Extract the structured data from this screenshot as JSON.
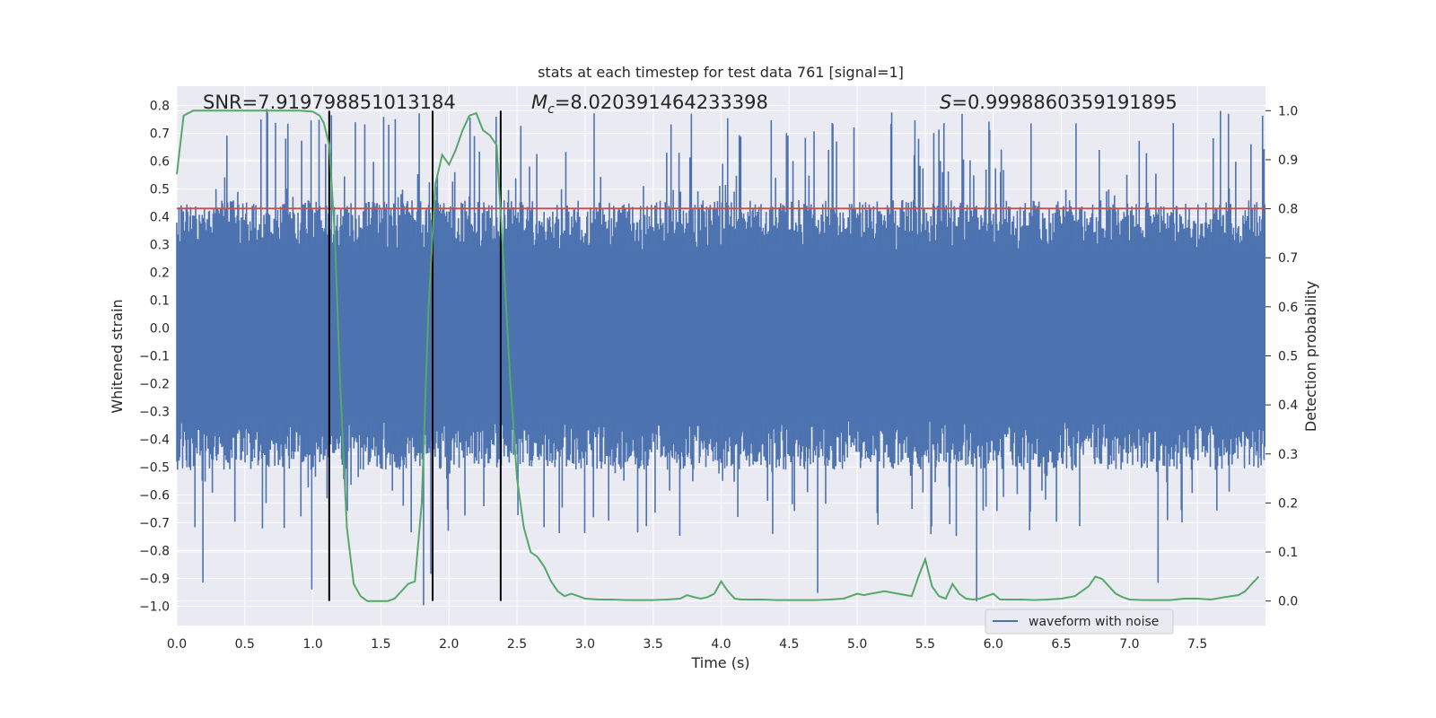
{
  "chart_data": {
    "type": "line",
    "title": "stats at each timestep for test data 761 [signal=1]",
    "xlabel": "Time (s)",
    "ylabel_left": "Whitened strain",
    "ylabel_right": "Detection probability",
    "xlim": [
      0.0,
      8.0
    ],
    "ylim_left": [
      -1.07,
      0.87
    ],
    "ylim_right": [
      -0.05,
      1.05
    ],
    "x_ticks": [
      "0.0",
      "0.5",
      "1.0",
      "1.5",
      "2.0",
      "2.5",
      "3.0",
      "3.5",
      "4.0",
      "4.5",
      "5.0",
      "5.5",
      "6.0",
      "6.5",
      "7.0",
      "7.5"
    ],
    "y_left_ticks": [
      "0.8",
      "0.7",
      "0.6",
      "0.5",
      "0.4",
      "0.3",
      "0.2",
      "0.1",
      "0.0",
      "−0.1",
      "−0.2",
      "−0.3",
      "−0.4",
      "−0.5",
      "−0.6",
      "−0.7",
      "−0.8",
      "−0.9",
      "−1.0"
    ],
    "y_right_ticks": [
      "1.0",
      "0.9",
      "0.8",
      "0.7",
      "0.6",
      "0.5",
      "0.4",
      "0.3",
      "0.2",
      "0.1",
      "0.0"
    ],
    "grid": true,
    "legend": {
      "position": "lower-right",
      "entries": [
        "waveform with noise"
      ]
    },
    "annotations": {
      "snr": "SNR=7.919798851013184",
      "mc_symbol": "M",
      "mc_sub": "c",
      "mc_value": "=8.020391464233398",
      "s_symbol": "S",
      "s_value": "=0.9998860359191895"
    },
    "threshold_left": 0.43,
    "vertical_markers": [
      1.12,
      1.88,
      2.38
    ],
    "waveform_noise": {
      "name": "waveform with noise",
      "envelope_pos": 0.4,
      "envelope_neg": -0.45,
      "peak_max": 0.79,
      "peak_min": -1.0
    },
    "detection_probability": {
      "x": [
        0.0,
        0.05,
        0.12,
        0.25,
        0.5,
        0.75,
        0.9,
        1.0,
        1.05,
        1.08,
        1.12,
        1.16,
        1.2,
        1.25,
        1.3,
        1.35,
        1.4,
        1.45,
        1.5,
        1.55,
        1.6,
        1.65,
        1.7,
        1.75,
        1.8,
        1.85,
        1.9,
        1.95,
        2.0,
        2.05,
        2.1,
        2.15,
        2.2,
        2.25,
        2.3,
        2.35,
        2.4,
        2.45,
        2.5,
        2.55,
        2.6,
        2.65,
        2.7,
        2.75,
        2.8,
        2.85,
        2.9,
        2.95,
        3.0,
        3.1,
        3.2,
        3.3,
        3.4,
        3.5,
        3.6,
        3.7,
        3.75,
        3.8,
        3.85,
        3.9,
        3.95,
        4.0,
        4.05,
        4.1,
        4.15,
        4.2,
        4.3,
        4.4,
        4.5,
        4.6,
        4.7,
        4.8,
        4.9,
        5.0,
        5.05,
        5.1,
        5.2,
        5.3,
        5.4,
        5.45,
        5.5,
        5.55,
        5.6,
        5.65,
        5.7,
        5.75,
        5.8,
        5.85,
        5.9,
        5.95,
        6.0,
        6.05,
        6.1,
        6.2,
        6.3,
        6.4,
        6.5,
        6.6,
        6.7,
        6.75,
        6.8,
        6.85,
        6.9,
        6.95,
        7.0,
        7.1,
        7.2,
        7.3,
        7.4,
        7.5,
        7.6,
        7.7,
        7.8,
        7.85,
        7.9,
        7.95
      ],
      "y": [
        0.87,
        0.99,
        1.0,
        1.0,
        1.0,
        1.0,
        1.0,
        0.998,
        0.99,
        0.975,
        0.93,
        0.75,
        0.45,
        0.15,
        0.035,
        0.01,
        0.0,
        0.0,
        0.0,
        0.0,
        0.005,
        0.02,
        0.035,
        0.04,
        0.2,
        0.6,
        0.85,
        0.91,
        0.89,
        0.92,
        0.96,
        0.99,
        0.995,
        0.96,
        0.95,
        0.93,
        0.7,
        0.45,
        0.25,
        0.15,
        0.1,
        0.09,
        0.07,
        0.04,
        0.02,
        0.01,
        0.015,
        0.01,
        0.005,
        0.003,
        0.003,
        0.002,
        0.002,
        0.002,
        0.003,
        0.005,
        0.012,
        0.008,
        0.005,
        0.008,
        0.015,
        0.04,
        0.02,
        0.005,
        0.003,
        0.003,
        0.003,
        0.002,
        0.002,
        0.002,
        0.002,
        0.003,
        0.005,
        0.015,
        0.012,
        0.015,
        0.02,
        0.015,
        0.01,
        0.05,
        0.085,
        0.03,
        0.01,
        0.005,
        0.035,
        0.015,
        0.005,
        0.003,
        0.005,
        0.01,
        0.015,
        0.003,
        0.003,
        0.003,
        0.002,
        0.003,
        0.005,
        0.01,
        0.03,
        0.05,
        0.045,
        0.03,
        0.015,
        0.008,
        0.003,
        0.002,
        0.002,
        0.002,
        0.005,
        0.005,
        0.003,
        0.008,
        0.012,
        0.02,
        0.035,
        0.05
      ]
    },
    "colors": {
      "plot_bg": "#eaeaf2",
      "grid": "#ffffff",
      "waveform": "#4c72b0",
      "probability": "#55a868",
      "threshold": "#c44e52",
      "markers": "#000000"
    }
  }
}
